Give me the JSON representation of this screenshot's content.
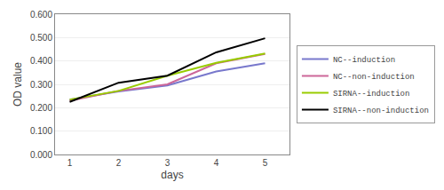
{
  "chart_data": {
    "type": "line",
    "x": [
      1,
      2,
      3,
      4,
      5
    ],
    "series": [
      {
        "name": "NC--induction",
        "color": "#7878cc",
        "values": [
          0.235,
          0.27,
          0.295,
          0.355,
          0.39
        ]
      },
      {
        "name": "NC--non-induction",
        "color": "#cc6699",
        "values": [
          0.23,
          0.272,
          0.3,
          0.39,
          0.43
        ]
      },
      {
        "name": "SIRNA--induction",
        "color": "#99cc00",
        "values": [
          0.235,
          0.272,
          0.337,
          0.392,
          0.432
        ]
      },
      {
        "name": "SIRNA--non-induction",
        "color": "#000000",
        "values": [
          0.225,
          0.307,
          0.337,
          0.437,
          0.497
        ]
      }
    ],
    "xlabel": "days",
    "ylabel": "OD value",
    "xlim": [
      0.7,
      5.5
    ],
    "xticks": [
      1,
      2,
      3,
      4,
      5
    ],
    "ylim": [
      0.0,
      0.6
    ],
    "yticks": [
      {
        "value": 0.0,
        "label": "0.000"
      },
      {
        "value": 0.1,
        "label": "0.100"
      },
      {
        "value": 0.2,
        "label": "0.200"
      },
      {
        "value": 0.3,
        "label": "0.300"
      },
      {
        "value": 0.4,
        "label": "0.400"
      },
      {
        "value": 0.5,
        "label": "0.500"
      },
      {
        "value": 0.6,
        "label": "0.600"
      }
    ],
    "grid": "y",
    "legend": "right"
  }
}
